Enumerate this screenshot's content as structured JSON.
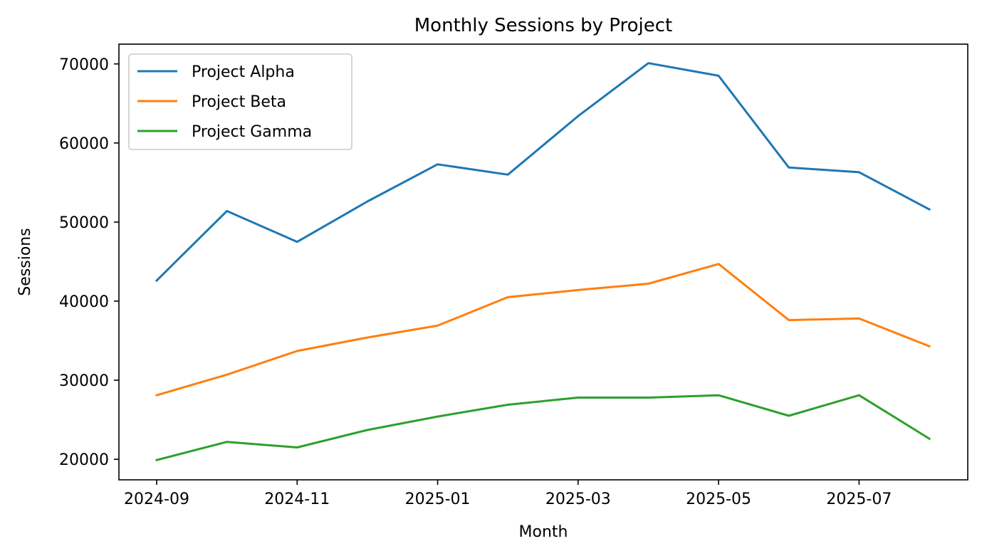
{
  "chart_data": {
    "type": "line",
    "title": "Monthly Sessions by Project",
    "xlabel": "Month",
    "ylabel": "Sessions",
    "x": [
      "2024-09",
      "2024-10",
      "2024-11",
      "2024-12",
      "2025-01",
      "2025-02",
      "2025-03",
      "2025-04",
      "2025-05",
      "2025-06",
      "2025-07",
      "2025-08"
    ],
    "xticks": [
      "2024-09",
      "2024-11",
      "2025-01",
      "2025-03",
      "2025-05",
      "2025-07"
    ],
    "yticks": [
      20000,
      30000,
      40000,
      50000,
      60000,
      70000
    ],
    "ylim": [
      17400,
      72500
    ],
    "grid": false,
    "legend_position": "top-left",
    "series": [
      {
        "name": "Project Alpha",
        "color": "#1f77b4",
        "values": [
          42600,
          51400,
          47500,
          52600,
          57300,
          56000,
          63400,
          70100,
          68500,
          56900,
          56300,
          51600
        ]
      },
      {
        "name": "Project Beta",
        "color": "#ff7f0e",
        "values": [
          28100,
          30700,
          33700,
          35400,
          36900,
          40500,
          41400,
          42200,
          44700,
          37600,
          37800,
          34300
        ]
      },
      {
        "name": "Project Gamma",
        "color": "#2ca02c",
        "values": [
          19900,
          22200,
          21500,
          23700,
          25400,
          26900,
          27800,
          27800,
          28100,
          25500,
          28100,
          22600
        ]
      }
    ]
  }
}
